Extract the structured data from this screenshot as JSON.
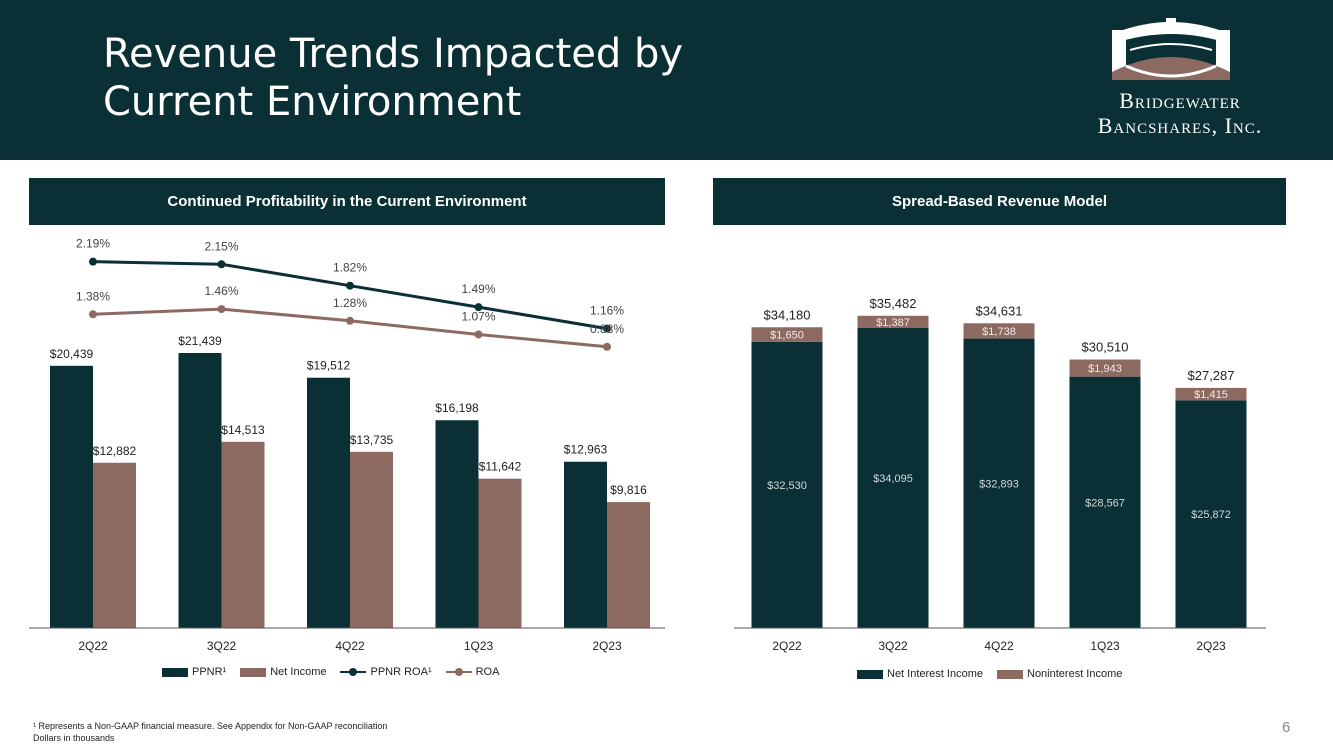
{
  "header": {
    "title_line1": "Revenue Trends Impacted by",
    "title_line2": "Current Environment",
    "logo_line1": "Bridgewater",
    "logo_line2": "Bancshares, Inc."
  },
  "colors": {
    "dark_teal": "#0a2f35",
    "brown": "#8c6a62",
    "white": "#ffffff"
  },
  "chart_data": [
    {
      "type": "bar",
      "title": "Continued Profitability in the Current Environment",
      "categories": [
        "2Q22",
        "3Q22",
        "4Q22",
        "1Q23",
        "2Q23"
      ],
      "series": [
        {
          "name": "PPNR¹",
          "kind": "bar",
          "values": [
            20439,
            21439,
            19512,
            16198,
            12963
          ],
          "labels": [
            "$20,439",
            "$21,439",
            "$19,512",
            "$16,198",
            "$12,963"
          ]
        },
        {
          "name": "Net Income",
          "kind": "bar",
          "values": [
            12882,
            14513,
            13735,
            11642,
            9816
          ],
          "labels": [
            "$12,882",
            "$14,513",
            "$13,735",
            "$11,642",
            "$9,816"
          ]
        },
        {
          "name": "PPNR ROA¹",
          "kind": "line",
          "values": [
            2.19,
            2.15,
            1.82,
            1.49,
            1.16
          ],
          "labels": [
            "2.19%",
            "2.15%",
            "1.82%",
            "1.49%",
            "1.16%"
          ]
        },
        {
          "name": "ROA",
          "kind": "line",
          "values": [
            1.38,
            1.46,
            1.28,
            1.07,
            0.88
          ],
          "labels": [
            "1.38%",
            "1.46%",
            "1.28%",
            "1.07%",
            "0.88%"
          ]
        }
      ],
      "ylim": [
        0,
        23000
      ],
      "legend": "bottom"
    },
    {
      "type": "bar",
      "stacked": true,
      "title": "Spread-Based Revenue Model",
      "categories": [
        "2Q22",
        "3Q22",
        "4Q22",
        "1Q23",
        "2Q23"
      ],
      "series": [
        {
          "name": "Net Interest Income",
          "values": [
            32530,
            34095,
            32893,
            28567,
            25872
          ],
          "labels": [
            "$32,530",
            "$34,095",
            "$32,893",
            "$28,567",
            "$25,872"
          ]
        },
        {
          "name": "Noninterest Income",
          "values": [
            1650,
            1387,
            1738,
            1943,
            1415
          ],
          "labels": [
            "$1,650",
            "$1,387",
            "$1,738",
            "$1,943",
            "$1,415"
          ]
        }
      ],
      "totals": [
        34180,
        35482,
        34631,
        30510,
        27287
      ],
      "total_labels": [
        "$34,180",
        "$35,482",
        "$34,631",
        "$30,510",
        "$27,287"
      ],
      "ylim": [
        0,
        38000
      ],
      "legend": "bottom"
    }
  ],
  "legend_left": [
    "PPNR¹",
    "Net Income",
    "PPNR ROA¹",
    "ROA"
  ],
  "legend_right": [
    "Net Interest Income",
    "Noninterest Income"
  ],
  "footnote": {
    "line1": "¹ Represents a Non-GAAP financial measure. See Appendix for Non-GAAP reconciliation",
    "line2": "Dollars in thousands"
  },
  "page_number": "6"
}
